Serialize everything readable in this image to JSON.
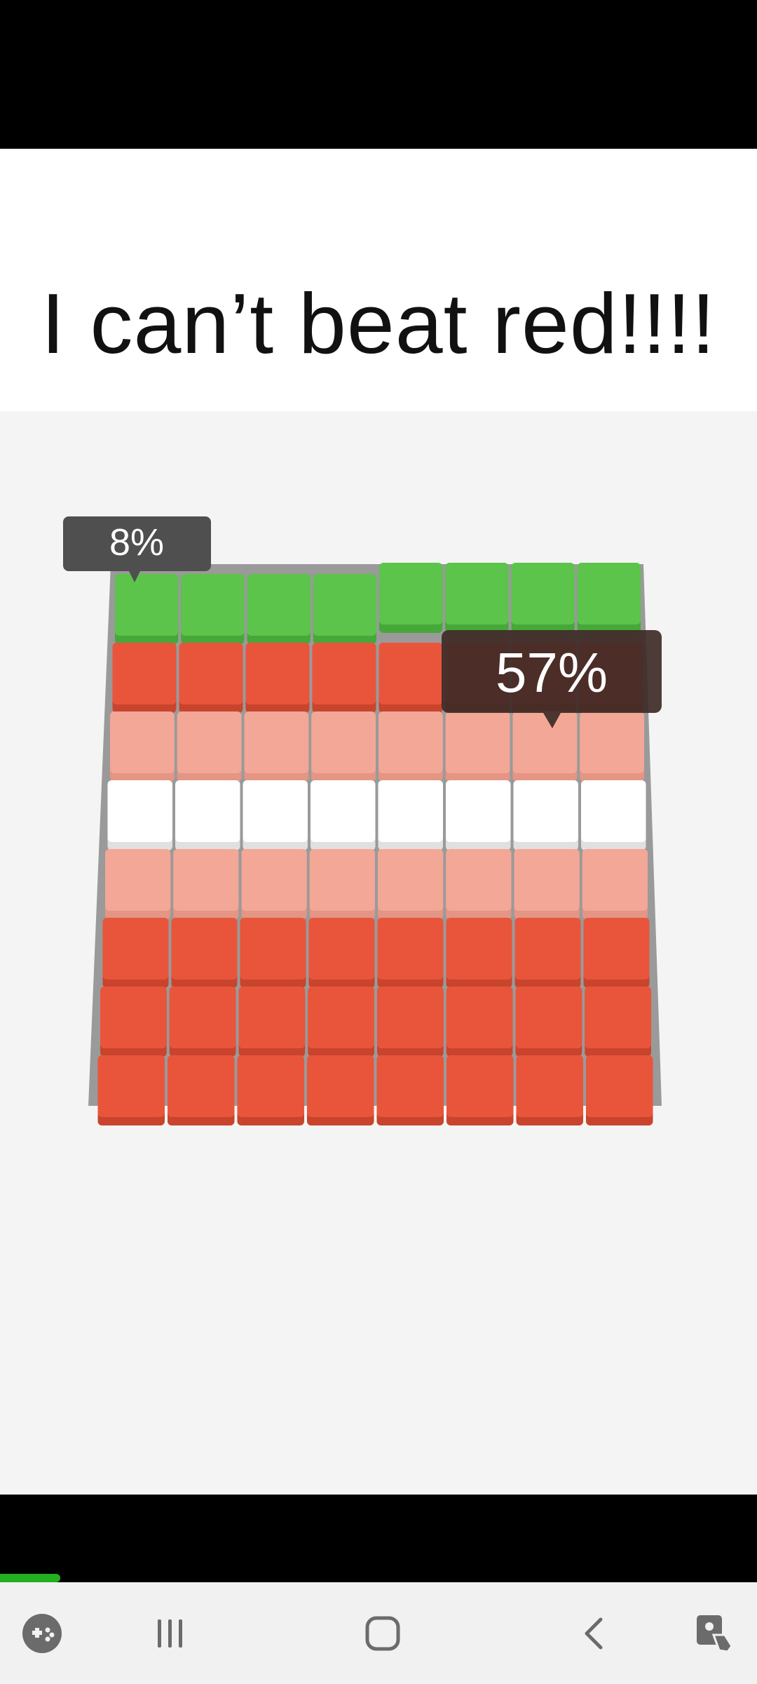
{
  "caption": {
    "text": "I can’t beat red!!!!"
  },
  "game": {
    "green_player": {
      "percent_label": "8%",
      "color": "#5cc34b"
    },
    "red_player": {
      "percent_label": "57%",
      "color": "#e8553a"
    },
    "board_rows": [
      "green",
      "red",
      "light-red",
      "white",
      "light-red",
      "red",
      "red",
      "red"
    ],
    "board_cols": 8,
    "colors": {
      "green": "#5cc34b",
      "red": "#e8553a",
      "light-red": "#f3a796",
      "white": "#ffffff",
      "label_bg": "#4a4a4a",
      "label_bg_dark": "#3d2a26"
    }
  },
  "video": {
    "progress_percent": 8
  },
  "nav": {
    "icons": [
      "game-launcher-icon",
      "recent-apps-icon",
      "home-icon",
      "back-icon",
      "screen-assist-icon"
    ]
  }
}
